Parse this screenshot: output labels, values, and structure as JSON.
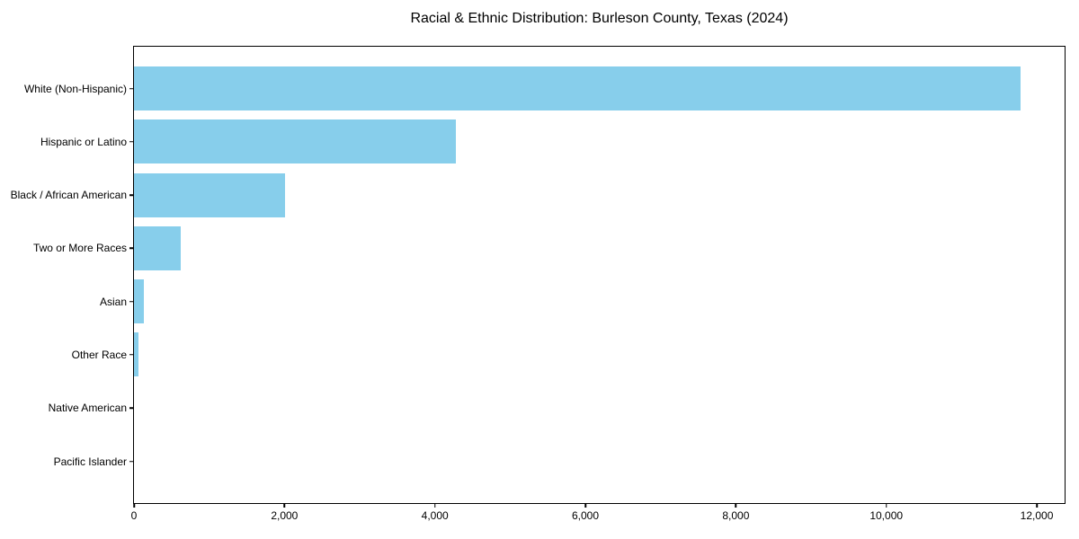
{
  "chart_data": {
    "type": "bar",
    "orientation": "horizontal",
    "title": "Racial & Ethnic Distribution: Burleson County, Texas (2024)",
    "xlabel": "",
    "ylabel": "",
    "categories": [
      "White (Non-Hispanic)",
      "Hispanic or Latino",
      "Black / African American",
      "Two or More Races",
      "Asian",
      "Other Race",
      "Native American",
      "Pacific Islander"
    ],
    "values": [
      11780,
      4280,
      2005,
      620,
      127,
      55,
      0,
      0
    ],
    "xlim": [
      0,
      12370
    ],
    "xticks": [
      0,
      2000,
      4000,
      6000,
      8000,
      10000,
      12000
    ],
    "xtick_labels": [
      "0",
      "2,000",
      "4,000",
      "6,000",
      "8,000",
      "10,000",
      "12,000"
    ],
    "bar_color": "#87CEEB",
    "background_color": "#ffffff",
    "spine_color": "#000000",
    "grid": false,
    "legend": null
  }
}
